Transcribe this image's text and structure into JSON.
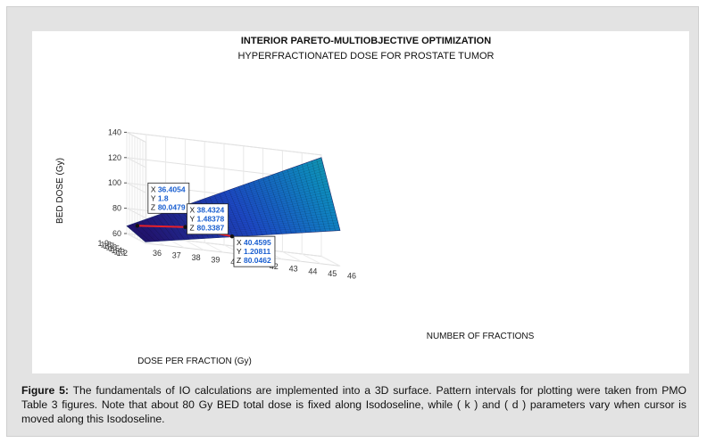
{
  "chart_data": {
    "type": "surface",
    "title": "INTERIOR PARETO-MULTIOBJECTIVE OPTIMIZATION",
    "subtitle": "HYPERFRACTIONATED DOSE FOR PROSTATE TUMOR",
    "xlabel": "NUMBER OF FRACTIONS",
    "ylabel": "DOSE PER FRACTION (Gy)",
    "zlabel": "BED DOSE (Gy)",
    "xlim": [
      36,
      46
    ],
    "ylim": [
      1.2,
      1.9
    ],
    "zlim": [
      60,
      140
    ],
    "x_ticks": [
      "36",
      "37",
      "38",
      "39",
      "40",
      "41",
      "42",
      "43",
      "44",
      "45",
      "46"
    ],
    "y_ticks": [
      "1.2",
      "1.3",
      "1.4",
      "1.5",
      "1.6",
      "1.7",
      "1.8",
      "1.9"
    ],
    "z_ticks": [
      "60",
      "80",
      "100",
      "120",
      "140"
    ],
    "grid": true,
    "colormap": "parula",
    "isodose_line_color": "#e8202a",
    "isodose_line": [
      {
        "x": 36.4054,
        "y": 1.8,
        "z": 80.0479
      },
      {
        "x": 38.4324,
        "y": 1.48378,
        "z": 80.3387
      },
      {
        "x": 40.4595,
        "y": 1.20811,
        "z": 80.0462
      }
    ],
    "datatips": [
      {
        "x_label": "X",
        "x": "36.4054",
        "y_label": "Y",
        "y": "1.8",
        "z_label": "Z",
        "z": "80.0479"
      },
      {
        "x_label": "X",
        "x": "38.4324",
        "y_label": "Y",
        "y": "1.48378",
        "z_label": "Z",
        "z": "80.3387"
      },
      {
        "x_label": "X",
        "x": "40.4595",
        "y_label": "Y",
        "y": "1.20811",
        "z_label": "Z",
        "z": "80.0462"
      }
    ]
  },
  "caption": {
    "label": "Figure 5:",
    "text": " The fundamentals of IO calculations are implemented into a 3D surface. Pattern intervals for plotting were taken from PMO Table 3 figures. Note that about 80 Gy BED total dose is fixed along Isodoseline, while ( k ) and ( d ) parameters vary when cursor is moved along this Isodoseline."
  }
}
